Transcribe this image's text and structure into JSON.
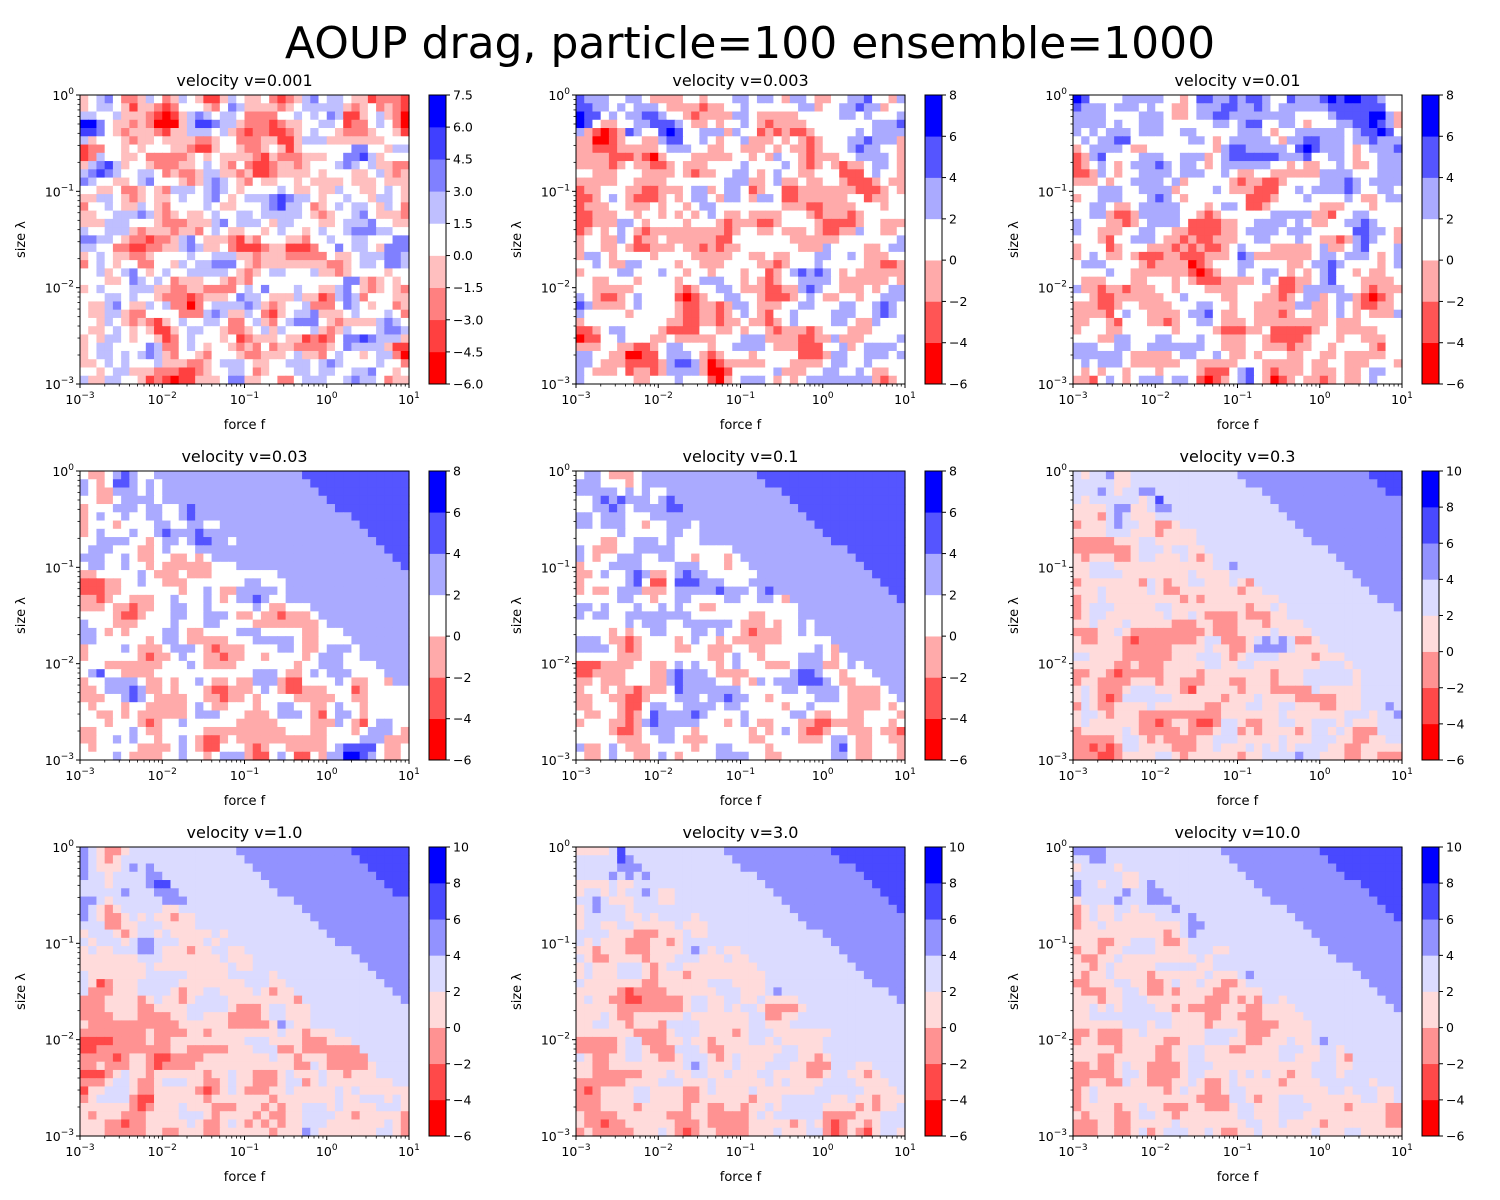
{
  "figure": {
    "title": "AOUP drag, particle=100 ensemble=1000"
  },
  "chart_data": [
    {
      "type": "heatmap",
      "title": "velocity v=0.001",
      "xlabel": "force f",
      "ylabel": "size λ",
      "xscale": "log",
      "yscale": "log",
      "xlim": [
        0.001,
        10
      ],
      "ylim": [
        0.001,
        1
      ],
      "x_ticks": [
        "10^-3",
        "10^-2",
        "10^-1",
        "10^0",
        "10^1"
      ],
      "y_ticks": [
        "10^-3",
        "10^-2",
        "10^-1",
        "10^0"
      ],
      "colormap": "bwr_r",
      "colorbar": {
        "levels": [
          -6.0,
          -4.5,
          -3.0,
          -1.5,
          0.0,
          1.5,
          3.0,
          4.5,
          6.0,
          7.5
        ],
        "tick_labels": [
          "−6.0",
          "−4.5",
          "−3.0",
          "−1.5",
          "0.0",
          "1.5",
          "3.0",
          "4.5",
          "6.0",
          "7.5"
        ]
      },
      "trend": {
        "order": 0,
        "diag": 0,
        "noise": 4.2,
        "clusterEdge": 0
      },
      "legend": "none",
      "grid": false
    },
    {
      "type": "heatmap",
      "title": "velocity v=0.003",
      "xlabel": "force f",
      "ylabel": "size λ",
      "xscale": "log",
      "yscale": "log",
      "xlim": [
        0.001,
        10
      ],
      "ylim": [
        0.001,
        1
      ],
      "x_ticks": [
        "10^-3",
        "10^-2",
        "10^-1",
        "10^0",
        "10^1"
      ],
      "y_ticks": [
        "10^-3",
        "10^-2",
        "10^-1",
        "10^0"
      ],
      "colormap": "bwr_r",
      "colorbar": {
        "levels": [
          -6,
          -4,
          -2,
          0,
          2,
          4,
          6,
          8
        ],
        "tick_labels": [
          "−6",
          "−4",
          "−2",
          "0",
          "2",
          "4",
          "6",
          "8"
        ]
      },
      "trend": {
        "order": 0.05,
        "diag": 0.05,
        "noise": 3.8,
        "clusterEdge": 0.3
      },
      "legend": "none",
      "grid": false
    },
    {
      "type": "heatmap",
      "title": "velocity v=0.01",
      "xlabel": "force f",
      "ylabel": "size λ",
      "xscale": "log",
      "yscale": "log",
      "xlim": [
        0.001,
        10
      ],
      "ylim": [
        0.001,
        1
      ],
      "x_ticks": [
        "10^-3",
        "10^-2",
        "10^-1",
        "10^0",
        "10^1"
      ],
      "y_ticks": [
        "10^-3",
        "10^-2",
        "10^-1",
        "10^0"
      ],
      "colormap": "bwr_r",
      "colorbar": {
        "levels": [
          -6,
          -4,
          -2,
          0,
          2,
          4,
          6,
          8
        ],
        "tick_labels": [
          "−6",
          "−4",
          "−2",
          "0",
          "2",
          "4",
          "6",
          "8"
        ]
      },
      "trend": {
        "order": 0.25,
        "diag": 0.1,
        "noise": 3.6,
        "clusterEdge": 0.45
      },
      "legend": "none",
      "grid": false
    },
    {
      "type": "heatmap",
      "title": "velocity v=0.03",
      "xlabel": "force f",
      "ylabel": "size λ",
      "xscale": "log",
      "yscale": "log",
      "xlim": [
        0.001,
        10
      ],
      "ylim": [
        0.001,
        1
      ],
      "x_ticks": [
        "10^-3",
        "10^-2",
        "10^-1",
        "10^0",
        "10^1"
      ],
      "y_ticks": [
        "10^-3",
        "10^-2",
        "10^-1",
        "10^0"
      ],
      "colormap": "bwr_r",
      "colorbar": {
        "levels": [
          -6,
          -4,
          -2,
          0,
          2,
          4,
          6,
          8
        ],
        "tick_labels": [
          "−6",
          "−4",
          "−2",
          "0",
          "2",
          "4",
          "6",
          "8"
        ]
      },
      "trend": {
        "order": 0.45,
        "diag": 0.2,
        "noise": 3.4,
        "clusterEdge": 0.55
      },
      "legend": "none",
      "grid": false
    },
    {
      "type": "heatmap",
      "title": "velocity v=0.1",
      "xlabel": "force f",
      "ylabel": "size λ",
      "xscale": "log",
      "yscale": "log",
      "xlim": [
        0.001,
        10
      ],
      "ylim": [
        0.001,
        1
      ],
      "x_ticks": [
        "10^-3",
        "10^-2",
        "10^-1",
        "10^0",
        "10^1"
      ],
      "y_ticks": [
        "10^-3",
        "10^-2",
        "10^-1",
        "10^0"
      ],
      "colormap": "bwr_r",
      "colorbar": {
        "levels": [
          -6,
          -4,
          -2,
          0,
          2,
          4,
          6,
          8
        ],
        "tick_labels": [
          "−6",
          "−4",
          "−2",
          "0",
          "2",
          "4",
          "6",
          "8"
        ]
      },
      "trend": {
        "order": 0.6,
        "diag": 0.35,
        "noise": 3.2,
        "clusterEdge": 0.6
      },
      "legend": "none",
      "grid": false
    },
    {
      "type": "heatmap",
      "title": "velocity v=0.3",
      "xlabel": "force f",
      "ylabel": "size λ",
      "xscale": "log",
      "yscale": "log",
      "xlim": [
        0.001,
        10
      ],
      "ylim": [
        0.001,
        1
      ],
      "x_ticks": [
        "10^-3",
        "10^-2",
        "10^-1",
        "10^0",
        "10^1"
      ],
      "y_ticks": [
        "10^-3",
        "10^-2",
        "10^-1",
        "10^0"
      ],
      "colormap": "bwr_r",
      "colorbar": {
        "levels": [
          -6,
          -4,
          -2,
          0,
          2,
          4,
          6,
          8,
          10
        ],
        "tick_labels": [
          "−6",
          "−4",
          "−2",
          "0",
          "2",
          "4",
          "6",
          "8",
          "10"
        ]
      },
      "trend": {
        "order": 0.7,
        "diag": 0.5,
        "noise": 3.0,
        "clusterEdge": 0.7
      },
      "legend": "none",
      "grid": false
    },
    {
      "type": "heatmap",
      "title": "velocity v=1.0",
      "xlabel": "force f",
      "ylabel": "size λ",
      "xscale": "log",
      "yscale": "log",
      "xlim": [
        0.001,
        10
      ],
      "ylim": [
        0.001,
        1
      ],
      "x_ticks": [
        "10^-3",
        "10^-2",
        "10^-1",
        "10^0",
        "10^1"
      ],
      "y_ticks": [
        "10^-3",
        "10^-2",
        "10^-1",
        "10^0"
      ],
      "colormap": "bwr_r",
      "colorbar": {
        "levels": [
          -6,
          -4,
          -2,
          0,
          2,
          4,
          6,
          8,
          10
        ],
        "tick_labels": [
          "−6",
          "−4",
          "−2",
          "0",
          "2",
          "4",
          "6",
          "8",
          "10"
        ]
      },
      "trend": {
        "order": 0.8,
        "diag": 0.6,
        "noise": 2.9,
        "clusterEdge": 0.8
      },
      "legend": "none",
      "grid": false
    },
    {
      "type": "heatmap",
      "title": "velocity v=3.0",
      "xlabel": "force f",
      "ylabel": "size λ",
      "xscale": "log",
      "yscale": "log",
      "xlim": [
        0.001,
        10
      ],
      "ylim": [
        0.001,
        1
      ],
      "x_ticks": [
        "10^-3",
        "10^-2",
        "10^-1",
        "10^0",
        "10^1"
      ],
      "y_ticks": [
        "10^-3",
        "10^-2",
        "10^-1",
        "10^0"
      ],
      "colormap": "bwr_r",
      "colorbar": {
        "levels": [
          -6,
          -4,
          -2,
          0,
          2,
          4,
          6,
          8,
          10
        ],
        "tick_labels": [
          "−6",
          "−4",
          "−2",
          "0",
          "2",
          "4",
          "6",
          "8",
          "10"
        ]
      },
      "trend": {
        "order": 0.85,
        "diag": 0.7,
        "noise": 2.8,
        "clusterEdge": 0.85
      },
      "legend": "none",
      "grid": false
    },
    {
      "type": "heatmap",
      "title": "velocity v=10.0",
      "xlabel": "force f",
      "ylabel": "size λ",
      "xscale": "log",
      "yscale": "log",
      "xlim": [
        0.001,
        10
      ],
      "ylim": [
        0.001,
        1
      ],
      "x_ticks": [
        "10^-3",
        "10^-2",
        "10^-1",
        "10^0",
        "10^1"
      ],
      "y_ticks": [
        "10^-3",
        "10^-2",
        "10^-1",
        "10^0"
      ],
      "colormap": "bwr_r",
      "colorbar": {
        "levels": [
          -6,
          -4,
          -2,
          0,
          2,
          4,
          6,
          8,
          10
        ],
        "tick_labels": [
          "−6",
          "−4",
          "−2",
          "0",
          "2",
          "4",
          "6",
          "8",
          "10"
        ]
      },
      "trend": {
        "order": 0.9,
        "diag": 0.8,
        "noise": 2.7,
        "clusterEdge": 0.9
      },
      "legend": "none",
      "grid": false
    }
  ]
}
